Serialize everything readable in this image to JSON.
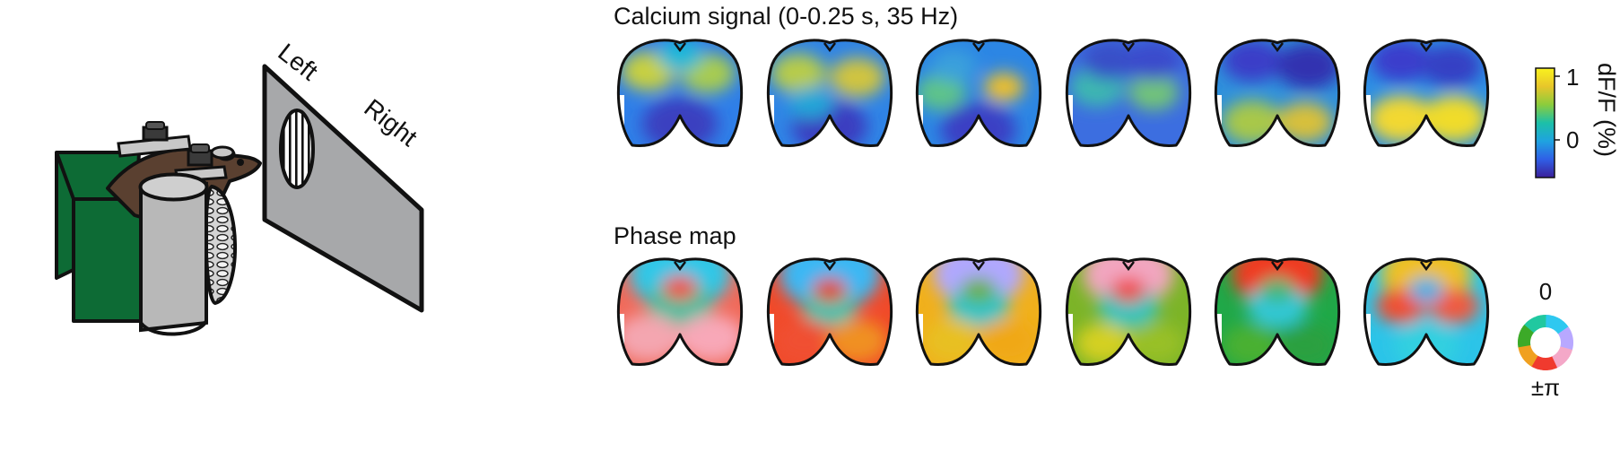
{
  "setup": {
    "screen_left_label": "Left",
    "screen_right_label": "Right"
  },
  "calcium_row": {
    "title": "Calcium signal (0-0.25 s, 35 Hz)",
    "frame_count": 6
  },
  "phase_row": {
    "title": "Phase map",
    "frame_count": 6
  },
  "calcium_colorbar": {
    "label": "dF/F (%)",
    "tick_max": "1",
    "tick_zero": "0",
    "colormap": [
      "#3b1f9a",
      "#2f5fe6",
      "#1fa3e0",
      "#1cc0a8",
      "#8ccc3c",
      "#e8c62a",
      "#f9f21e"
    ]
  },
  "phase_colorbar": {
    "label_top": "0",
    "label_bottom": "±π",
    "colors": [
      "#2ec8f0",
      "#b8a8ff",
      "#f4a8c8",
      "#f03a2e",
      "#f0a020",
      "#3caa28",
      "#20c8a0"
    ]
  },
  "colors": {
    "tub_green": "#0d6b35",
    "mouse_brown": "#5a4030",
    "screen_gray": "#a7a8aa",
    "tube_gray": "#b8b8b8"
  }
}
